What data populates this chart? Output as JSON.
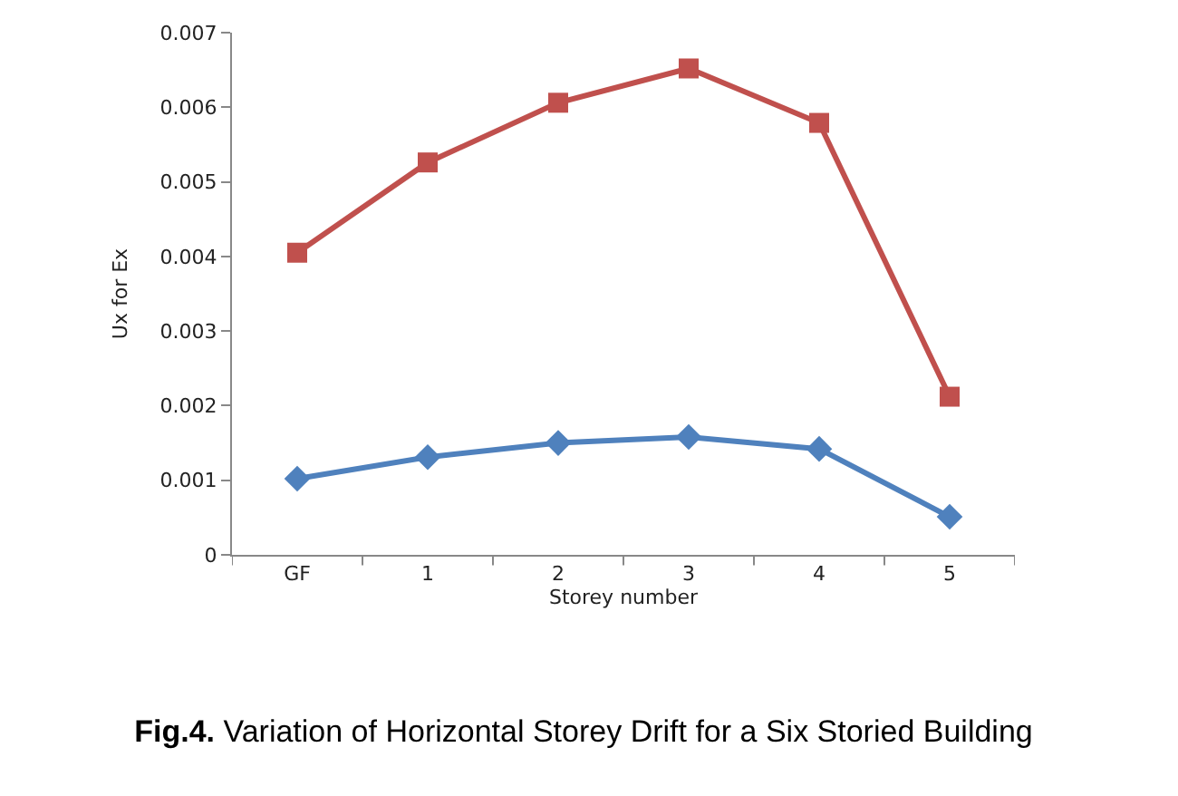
{
  "chart_data": {
    "type": "line",
    "title": "Fig.4. Variation of Horizontal Storey Drift for a Six Storied Building",
    "xlabel": "Storey number",
    "ylabel": "Ux for Ex",
    "categories": [
      "GF",
      "1",
      "2",
      "3",
      "4",
      "5"
    ],
    "series": [
      {
        "color": "#c0504d",
        "marker": "square",
        "values": [
          0.00405,
          0.00526,
          0.00606,
          0.00652,
          0.00579,
          0.00212
        ]
      },
      {
        "color": "#4f81bd",
        "marker": "diamond",
        "values": [
          0.00102,
          0.00131,
          0.0015,
          0.00158,
          0.00142,
          0.00051
        ]
      }
    ],
    "ylim": [
      0,
      0.007
    ],
    "yticks": [
      0,
      0.001,
      0.002,
      0.003,
      0.004,
      0.005,
      0.006,
      0.007
    ],
    "line_style": "solid"
  }
}
